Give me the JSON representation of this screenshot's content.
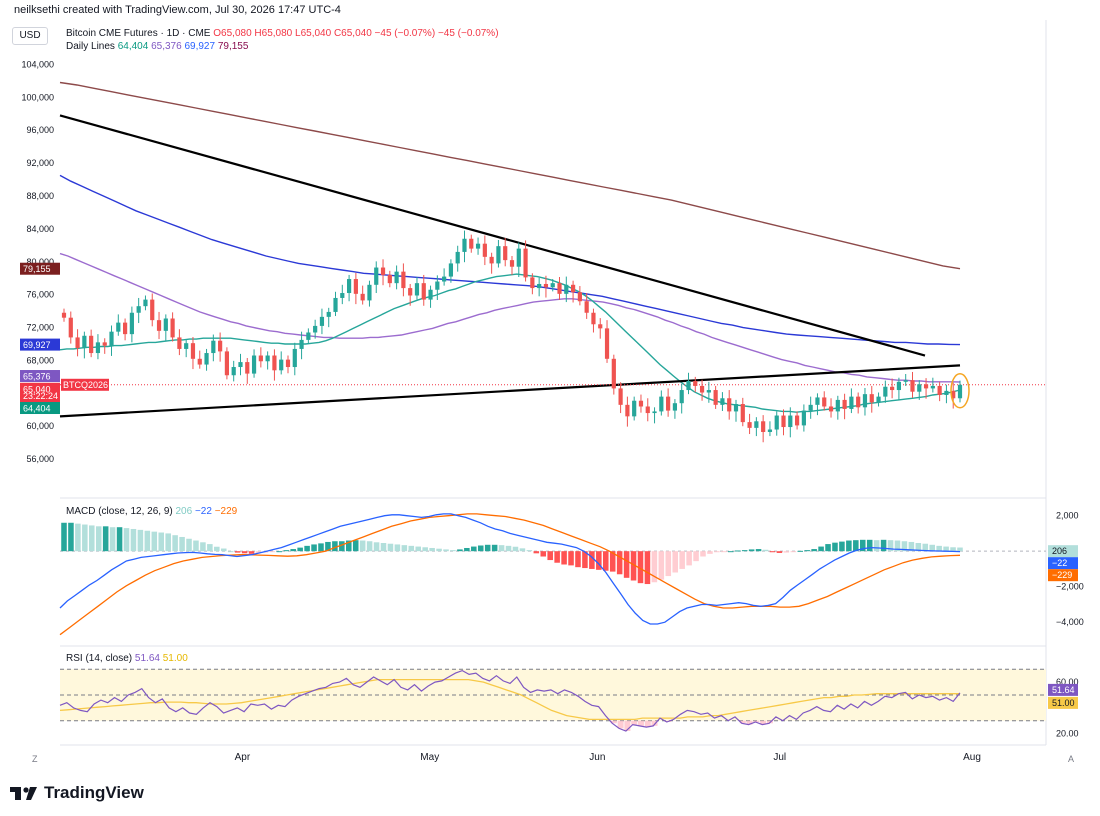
{
  "header": {
    "created_by": "neilksethi created with TradingView.com, Jul 30, 2026 17:47 UTC-4",
    "currency": "USD",
    "symbol_line": "Bitcoin CME Futures · 1D · CME",
    "ohlc": {
      "o": "O65,080",
      "h": "H65,080",
      "l": "L65,040",
      "c": "C65,040",
      "chg": "−45 (−0.07%)",
      "chg2": "−45 (−0.07%)"
    },
    "daily_lines_label": "Daily Lines",
    "daily_lines_values": [
      "64,404",
      "65,376",
      "69,927",
      "79,155"
    ]
  },
  "macd_legend": {
    "label": "MACD (close, 12, 26, 9)",
    "v1": "206",
    "v2": "−22",
    "v3": "−229"
  },
  "rsi_legend": {
    "label": "RSI (14, close)",
    "v1": "51.64",
    "v2": "51.00"
  },
  "footer": {
    "brand": "TradingView"
  },
  "corner": {
    "left": "Z",
    "right": "A"
  },
  "colors": {
    "up": "#26a69a",
    "down": "#ef5350",
    "ma20": "#26a69a",
    "ma50": "#9c6ccf",
    "ma100": "#2b39d6",
    "ma200": "#8d4a4a",
    "macd": "#2962ff",
    "signal": "#ff6d00",
    "rsi": "#7e57c2",
    "rsi_ma": "#f7c948",
    "trendline": "#000000",
    "highlight_ellipse": "#f5a623"
  },
  "chart_data": [
    {
      "type": "candlestick",
      "title": "Bitcoin CME Futures · 1D · CME",
      "x_ticks": [
        "Apr",
        "May",
        "Jun",
        "Jul",
        "Aug"
      ],
      "y_ticks": [
        "56,000",
        "60,000",
        "64,000",
        "68,000",
        "72,000",
        "76,000",
        "80,000",
        "84,000",
        "88,000",
        "92,000",
        "96,000",
        "100,000",
        "104,000"
      ],
      "ylim": [
        52000,
        106000
      ],
      "price_labels": [
        {
          "text": "79,155",
          "value": 79155,
          "color": "#7b1f1f"
        },
        {
          "text": "69,927",
          "value": 69927,
          "color": "#2b39d6"
        },
        {
          "text": "65,376",
          "value": 65376,
          "color": "#7e57c2"
        },
        {
          "text": "65,040",
          "value": 65040,
          "color": "#f23645"
        },
        {
          "text": "64,404",
          "value": 64404,
          "color": "#089981"
        }
      ],
      "countdown": "23:22:24",
      "contract_tag": "BTCQ2026",
      "last_price": 65040,
      "closes": [
        73200,
        70800,
        69500,
        71000,
        68900,
        70200,
        69800,
        71500,
        72600,
        71200,
        73800,
        74600,
        75400,
        72900,
        71600,
        73100,
        70800,
        69400,
        70100,
        68200,
        67500,
        68900,
        70400,
        69100,
        66200,
        67200,
        67800,
        66400,
        68600,
        67900,
        68600,
        66800,
        68100,
        67200,
        69400,
        70500,
        71400,
        72200,
        73300,
        73900,
        75600,
        76200,
        77900,
        76100,
        75300,
        77200,
        79300,
        78400,
        77400,
        78800,
        76800,
        75900,
        77400,
        75400,
        76600,
        77600,
        78200,
        79800,
        81200,
        82800,
        81600,
        82200,
        80600,
        79800,
        81900,
        80200,
        79400,
        81600,
        78100,
        76800,
        77300,
        76900,
        77400,
        76100,
        77200,
        76300,
        75200,
        73800,
        72400,
        71900,
        68200,
        64600,
        62600,
        61200,
        63100,
        62400,
        61600,
        61800,
        63600,
        61900,
        62800,
        64400,
        65500,
        64900,
        64100,
        64400,
        62600,
        63400,
        61800,
        62700,
        60500,
        59800,
        60600,
        59300,
        59600,
        61300,
        59900,
        61300,
        60100,
        61900,
        62600,
        63500,
        62400,
        61800,
        63200,
        62100,
        63600,
        62300,
        63900,
        62900,
        63600,
        64800,
        64400,
        65400,
        65600,
        64200,
        65100,
        64600,
        64900,
        63800,
        64300,
        63400,
        65040
      ],
      "ma20": [
        69300,
        69400,
        69400,
        69500,
        69600,
        69600,
        69700,
        69700,
        69800,
        69800,
        69900,
        70000,
        70100,
        70200,
        70200,
        70300,
        70400,
        70500,
        70500,
        70600,
        70600,
        70700,
        70700,
        70700,
        70700,
        70700,
        70600,
        70500,
        70400,
        70300,
        70200,
        70100,
        70100,
        70000,
        70000,
        70000,
        70000,
        70100,
        70200,
        70400,
        70700,
        71100,
        71500,
        71900,
        72300,
        72700,
        73100,
        73500,
        73900,
        74300,
        74600,
        74900,
        75200,
        75500,
        75700,
        75900,
        76200,
        76500,
        76700,
        77000,
        77300,
        77600,
        77800,
        78000,
        78200,
        78300,
        78400,
        78500,
        78400,
        78300,
        78200,
        78000,
        77800,
        77500,
        77200,
        76800,
        76400,
        75900,
        75300,
        74600,
        73900,
        73100,
        72300,
        71500,
        70700,
        69900,
        69100,
        68300,
        67500,
        66800,
        66100,
        65400,
        64800,
        64200,
        63800,
        63400,
        63100,
        62900,
        62700,
        62600,
        62500,
        62400,
        62300,
        62100,
        62000,
        61900,
        61800,
        61800,
        61700,
        61800,
        61800,
        61900,
        62000,
        62100,
        62200,
        62300,
        62400,
        62500,
        62700,
        62800,
        62900,
        63000,
        63100,
        63200,
        63300,
        63400,
        63500,
        63600,
        63800,
        63900,
        64000,
        64200,
        64404
      ],
      "ma50": [
        81000,
        80700,
        80300,
        79900,
        79500,
        79100,
        78700,
        78300,
        77900,
        77500,
        77100,
        76700,
        76300,
        75900,
        75500,
        75100,
        74700,
        74300,
        73900,
        73600,
        73300,
        73000,
        72700,
        72500,
        72200,
        72000,
        71800,
        71600,
        71500,
        71300,
        71200,
        71100,
        71000,
        70900,
        70800,
        70800,
        70700,
        70700,
        70700,
        70700,
        70800,
        70800,
        70900,
        71000,
        71100,
        71300,
        71500,
        71700,
        71900,
        72200,
        72500,
        72700,
        73000,
        73300,
        73600,
        73800,
        74100,
        74300,
        74500,
        74700,
        74900,
        75100,
        75200,
        75300,
        75400,
        75500,
        75500,
        75400,
        75300,
        75200,
        75100,
        74900,
        74700,
        74400,
        74200,
        73900,
        73600,
        73300,
        72900,
        72600,
        72200,
        71900,
        71500,
        71200,
        70800,
        70500,
        70200,
        69900,
        69600,
        69300,
        69000,
        68700,
        68400,
        68100,
        67900,
        67700,
        67400,
        67200,
        67000,
        66800,
        66600,
        66500,
        66300,
        66200,
        66000,
        65900,
        65800,
        65700,
        65600,
        65600,
        65500,
        65500,
        65400,
        65400,
        65400,
        65400,
        65376
      ],
      "ma100": [
        90500,
        89800,
        89200,
        88600,
        88000,
        87400,
        86800,
        86200,
        85700,
        85200,
        84700,
        84200,
        83700,
        83200,
        82700,
        82300,
        81900,
        81500,
        81100,
        80700,
        80400,
        80100,
        79800,
        79600,
        79400,
        79200,
        79000,
        78800,
        78600,
        78500,
        78400,
        78300,
        78200,
        78100,
        78000,
        77900,
        77800,
        77700,
        77600,
        77500,
        77400,
        77300,
        77200,
        77100,
        77000,
        76800,
        76600,
        76400,
        76200,
        76000,
        75800,
        75500,
        75200,
        74900,
        74600,
        74300,
        74000,
        73700,
        73400,
        73100,
        72800,
        72500,
        72300,
        72000,
        71800,
        71600,
        71400,
        71200,
        71100,
        71000,
        70900,
        70800,
        70700,
        70600,
        70500,
        70400,
        70300,
        70200,
        70200,
        70100,
        70000,
        70000,
        69950,
        69927
      ],
      "ma200": [
        101800,
        101500,
        101100,
        100700,
        100300,
        99900,
        99500,
        99100,
        98700,
        98300,
        97900,
        97500,
        97100,
        96700,
        96300,
        95900,
        95500,
        95100,
        94700,
        94300,
        93900,
        93500,
        93100,
        92700,
        92300,
        91900,
        91500,
        91100,
        90700,
        90300,
        89900,
        89500,
        89100,
        88700,
        88300,
        87900,
        87500,
        87000,
        86500,
        86000,
        85500,
        85000,
        84500,
        84000,
        83500,
        83000,
        82500,
        82000,
        81500,
        81000,
        80500,
        80000,
        79500,
        79155
      ],
      "trendlines": [
        {
          "name": "descending-resistance",
          "start_value": 97800,
          "end_value": 68600
        },
        {
          "name": "ascending-support",
          "start_value": 61200,
          "end_value": 67400
        }
      ]
    },
    {
      "type": "macd",
      "title": "MACD (close, 12, 26, 9)",
      "y_ticks": [
        "2,000",
        "−2,000",
        "−4,000"
      ],
      "ylim": [
        -5000,
        2600
      ],
      "histogram": [
        1600,
        1600,
        1550,
        1500,
        1450,
        1400,
        1400,
        1350,
        1350,
        1300,
        1250,
        1200,
        1150,
        1100,
        1050,
        1000,
        900,
        800,
        700,
        600,
        500,
        400,
        250,
        150,
        0,
        -80,
        -120,
        -150,
        -100,
        -80,
        -50,
        0,
        60,
        120,
        200,
        300,
        380,
        440,
        520,
        560,
        560,
        600,
        620,
        600,
        560,
        500,
        460,
        420,
        380,
        340,
        300,
        260,
        220,
        180,
        140,
        100,
        60,
        100,
        180,
        260,
        320,
        360,
        360,
        340,
        300,
        250,
        160,
        60,
        -120,
        -300,
        -500,
        -650,
        -750,
        -800,
        -900,
        -950,
        -1000,
        -1050,
        -1100,
        -1150,
        -1300,
        -1500,
        -1650,
        -1800,
        -1850,
        -1750,
        -1600,
        -1400,
        -1200,
        -1000,
        -800,
        -560,
        -300,
        -150,
        -60,
        -20,
        0,
        40,
        60,
        100,
        120,
        80,
        -60,
        -100,
        -80,
        -40,
        20,
        60,
        120,
        260,
        400,
        480,
        540,
        600,
        620,
        640,
        640,
        620,
        640,
        620,
        600,
        560,
        520,
        460,
        420,
        360,
        300,
        260,
        220,
        206
      ],
      "macd_line": [
        -3200,
        -2800,
        -2500,
        -2200,
        -1900,
        -1650,
        -1350,
        -1050,
        -800,
        -550,
        -450,
        -350,
        -300,
        -250,
        -200,
        -150,
        -100,
        -80,
        -70,
        -100,
        -150,
        -180,
        -200,
        -250,
        -300,
        -250,
        -200,
        -100,
        0,
        100,
        200,
        350,
        500,
        650,
        800,
        950,
        1100,
        1250,
        1400,
        1500,
        1600,
        1700,
        1800,
        1900,
        2000,
        2050,
        2050,
        2000,
        1950,
        1900,
        1950,
        2050,
        2100,
        2100,
        2000,
        1900,
        1750,
        1600,
        1400,
        1250,
        1150,
        1000,
        900,
        800,
        700,
        600,
        500,
        450,
        400,
        300,
        200,
        0,
        -300,
        -700,
        -1200,
        -1800,
        -2400,
        -3000,
        -3500,
        -3900,
        -4100,
        -4100,
        -4000,
        -3700,
        -3400,
        -3200,
        -3100,
        -3000,
        -3000,
        -3050,
        -3000,
        -2950,
        -2900,
        -2950,
        -3050,
        -3100,
        -3050,
        -2950,
        -2600,
        -2200,
        -1900,
        -1600,
        -1300,
        -1000,
        -750,
        -500,
        -300,
        -100,
        50,
        150,
        200,
        180,
        150,
        120,
        100,
        80,
        60,
        40,
        20,
        10,
        0,
        -10,
        -22
      ],
      "signal_line": [
        -4700,
        -4300,
        -3900,
        -3500,
        -3100,
        -2700,
        -2300,
        -1950,
        -1650,
        -1350,
        -1100,
        -900,
        -700,
        -550,
        -450,
        -350,
        -300,
        -250,
        -220,
        -200,
        -200,
        -220,
        -240,
        -260,
        -280,
        -260,
        -200,
        -100,
        0,
        200,
        400,
        600,
        800,
        1000,
        1200,
        1400,
        1550,
        1700,
        1800,
        1900,
        1950,
        2000,
        2050,
        2100,
        2100,
        2050,
        2000,
        1950,
        1850,
        1750,
        1600,
        1450,
        1250,
        1050,
        850,
        650,
        450,
        250,
        0,
        -300,
        -600,
        -900,
        -1200,
        -1500,
        -1800,
        -2100,
        -2400,
        -2700,
        -2950,
        -3100,
        -3200,
        -3200,
        -3150,
        -3100,
        -3100,
        -3100,
        -3150,
        -3150,
        -3100,
        -2950,
        -2750,
        -2550,
        -2300,
        -2050,
        -1800,
        -1550,
        -1300,
        -1050,
        -850,
        -650,
        -500,
        -400,
        -320,
        -280,
        -250,
        -229
      ]
    },
    {
      "type": "rsi",
      "title": "RSI (14, close)",
      "y_ticks": [
        "60.00",
        "20.00"
      ],
      "ylim": [
        15,
        85
      ],
      "bands": [
        70,
        50,
        30
      ],
      "rsi": [
        42,
        44,
        40,
        38,
        37,
        43,
        46,
        44,
        48,
        45,
        50,
        52,
        55,
        48,
        44,
        47,
        40,
        37,
        40,
        36,
        35,
        40,
        44,
        41,
        36,
        38,
        40,
        37,
        43,
        42,
        43,
        39,
        42,
        41,
        46,
        49,
        51,
        53,
        55,
        56,
        59,
        60,
        63,
        58,
        56,
        60,
        64,
        61,
        58,
        62,
        56,
        54,
        58,
        53,
        57,
        60,
        61,
        64,
        67,
        69,
        66,
        67,
        63,
        61,
        65,
        61,
        59,
        64,
        56,
        52,
        54,
        53,
        54,
        51,
        54,
        52,
        49,
        45,
        42,
        41,
        34,
        28,
        24,
        22,
        27,
        26,
        25,
        26,
        32,
        29,
        31,
        35,
        38,
        37,
        35,
        36,
        32,
        34,
        30,
        33,
        28,
        27,
        29,
        27,
        28,
        33,
        30,
        34,
        31,
        36,
        38,
        41,
        38,
        37,
        42,
        39,
        43,
        40,
        45,
        42,
        45,
        49,
        48,
        51,
        52,
        47,
        50,
        48,
        49,
        46,
        48,
        45,
        51.64
      ],
      "rsi_ma": [
        38,
        38.5,
        39,
        39.5,
        40,
        40.5,
        41,
        41.5,
        42,
        42.5,
        43,
        43.5,
        44,
        44,
        44.5,
        44.5,
        44.5,
        44,
        44,
        43.5,
        43,
        43,
        43,
        43.5,
        44,
        45,
        46,
        47,
        48,
        49,
        50,
        51,
        52,
        53,
        54,
        55,
        56,
        57,
        58,
        59,
        60,
        61,
        62,
        62,
        62,
        62,
        62,
        62,
        62,
        62,
        62,
        62,
        62,
        62,
        62,
        61,
        60,
        58,
        56,
        54,
        52,
        50,
        47,
        44,
        41,
        38,
        36,
        34,
        33,
        32,
        31,
        31,
        31,
        31,
        31,
        31,
        31,
        32,
        32,
        32,
        32,
        32,
        32,
        33,
        33,
        33,
        34,
        34,
        35,
        36,
        37,
        38,
        39,
        40,
        41,
        42,
        43,
        44,
        45,
        46,
        47,
        48,
        48,
        49,
        49,
        50,
        50,
        50.5,
        51,
        51,
        51,
        51,
        51,
        51,
        51,
        51,
        51,
        51,
        51,
        51.0
      ]
    }
  ]
}
